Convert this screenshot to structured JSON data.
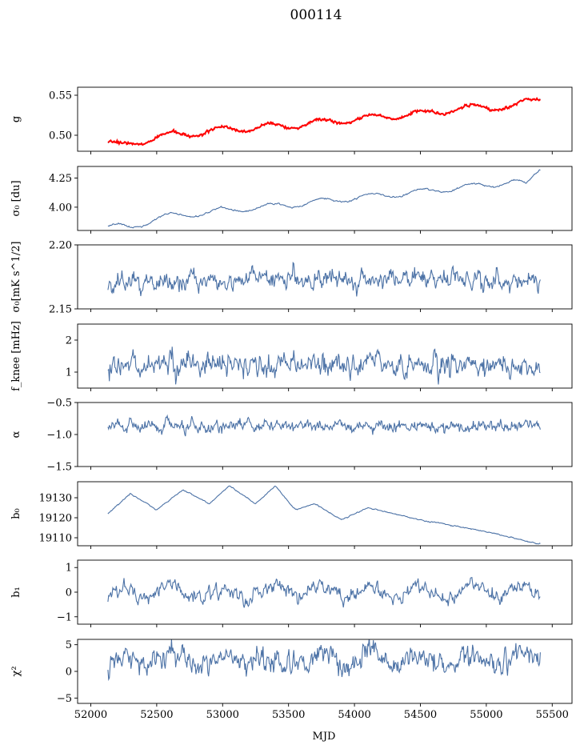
{
  "chart_data": {
    "type": "line",
    "title": "000114",
    "xlabel": "MJD",
    "xlim": [
      51900,
      55650
    ],
    "xticks": [
      52000,
      52500,
      53000,
      53500,
      54000,
      54500,
      55000,
      55500
    ],
    "x_start": 52130,
    "x_end": 55410,
    "line_color": "#4c72a6",
    "overlay_color": "#ff0000",
    "panels": [
      {
        "key": "g",
        "ylabel": "g",
        "ylim": [
          0.48,
          0.56
        ],
        "yticks": [
          0.5,
          0.55
        ],
        "yticklabels": [
          "0.50",
          "0.55"
        ],
        "trend": [
          [
            52130,
            0.491
          ],
          [
            52250,
            0.486
          ],
          [
            52500,
            0.498
          ],
          [
            53000,
            0.507
          ],
          [
            53500,
            0.512
          ],
          [
            54000,
            0.52
          ],
          [
            54500,
            0.527
          ],
          [
            55000,
            0.536
          ],
          [
            55200,
            0.535
          ],
          [
            55400,
            0.548
          ]
        ],
        "wave_amplitude": 0.004,
        "wave_period": 380,
        "noise": 0.0006,
        "overlay": true
      },
      {
        "key": "sigma0_du",
        "ylabel": "σ₀ [du]",
        "ylim": [
          3.8,
          4.35
        ],
        "yticks": [
          4.0,
          4.25
        ],
        "yticklabels": [
          "4.00",
          "4.25"
        ],
        "trend": [
          [
            52130,
            3.84
          ],
          [
            52300,
            3.82
          ],
          [
            52500,
            3.91
          ],
          [
            53000,
            3.97
          ],
          [
            53500,
            4.02
          ],
          [
            54000,
            4.08
          ],
          [
            54500,
            4.13
          ],
          [
            55000,
            4.19
          ],
          [
            55200,
            4.22
          ],
          [
            55300,
            4.19
          ],
          [
            55400,
            4.33
          ]
        ],
        "wave_amplitude": 0.025,
        "wave_period": 380,
        "noise": 0.003
      },
      {
        "key": "sigma0_mk",
        "ylabel": "σ₀[mK s^1/2]",
        "ylim": [
          2.15,
          2.2
        ],
        "yticks": [
          2.15,
          2.2
        ],
        "yticklabels": [
          "2.15",
          "2.20"
        ],
        "trend": [
          [
            52130,
            2.17
          ],
          [
            52500,
            2.17
          ],
          [
            53000,
            2.173
          ],
          [
            53500,
            2.175
          ],
          [
            54000,
            2.173
          ],
          [
            54500,
            2.174
          ],
          [
            55000,
            2.172
          ],
          [
            55400,
            2.171
          ]
        ],
        "wave_amplitude": 0.0,
        "wave_period": 380,
        "noise": 0.0035
      },
      {
        "key": "fknee",
        "ylabel": "f_knee [mHz]",
        "ylim": [
          0.5,
          2.5
        ],
        "yticks": [
          1,
          2
        ],
        "yticklabels": [
          "1",
          "2"
        ],
        "trend": [
          [
            52130,
            1.25
          ],
          [
            55400,
            1.2
          ]
        ],
        "wave_amplitude": 0.0,
        "wave_period": 380,
        "noise": 0.17
      },
      {
        "key": "alpha",
        "ylabel": "α",
        "ylim": [
          -1.5,
          -0.5
        ],
        "yticks": [
          -1.5,
          -1.0,
          -0.5
        ],
        "yticklabels": [
          "−1.5",
          "−1.0",
          "−0.5"
        ],
        "trend": [
          [
            52130,
            -0.87
          ],
          [
            55400,
            -0.87
          ]
        ],
        "wave_amplitude": 0.0,
        "wave_period": 380,
        "noise": 0.04
      },
      {
        "key": "b0",
        "ylabel": "b₀",
        "ylim": [
          19106,
          19138
        ],
        "yticks": [
          19110,
          19120,
          19130
        ],
        "yticklabels": [
          "19110",
          "19120",
          "19130"
        ],
        "trend": [
          [
            52130,
            19122
          ],
          [
            52300,
            19132
          ],
          [
            52500,
            19124
          ],
          [
            52700,
            19134
          ],
          [
            52900,
            19127
          ],
          [
            53050,
            19136
          ],
          [
            53250,
            19127
          ],
          [
            53400,
            19136
          ],
          [
            53550,
            19124
          ],
          [
            53700,
            19127
          ],
          [
            53900,
            19119
          ],
          [
            54100,
            19125
          ],
          [
            54500,
            19119
          ],
          [
            55000,
            19113
          ],
          [
            55400,
            19107
          ]
        ],
        "wave_amplitude": 0.0,
        "wave_period": 380,
        "noise": 0.12
      },
      {
        "key": "b1",
        "ylabel": "b₁",
        "ylim": [
          -1.3,
          1.3
        ],
        "yticks": [
          -1,
          0,
          1
        ],
        "yticklabels": [
          "−1",
          "0",
          "1"
        ],
        "trend": [
          [
            52130,
            -0.1
          ],
          [
            52500,
            0.1
          ],
          [
            53000,
            -0.1
          ],
          [
            53500,
            0.1
          ],
          [
            54000,
            0.0
          ],
          [
            54500,
            0.0
          ],
          [
            55000,
            0.0
          ],
          [
            55400,
            0.0
          ]
        ],
        "wave_amplitude": 0.25,
        "wave_period": 380,
        "noise": 0.13
      },
      {
        "key": "chi2",
        "ylabel": "χ²",
        "ylim": [
          -6,
          6
        ],
        "yticks": [
          -5,
          0,
          5
        ],
        "yticklabels": [
          "−5",
          "0",
          "5"
        ],
        "trend": [
          [
            52130,
            1.5
          ],
          [
            52500,
            2.5
          ],
          [
            53000,
            2.5
          ],
          [
            54000,
            2.0
          ],
          [
            55000,
            2.2
          ],
          [
            55400,
            3.0
          ]
        ],
        "wave_amplitude": 0.8,
        "wave_period": 380,
        "noise": 1.0
      }
    ]
  }
}
